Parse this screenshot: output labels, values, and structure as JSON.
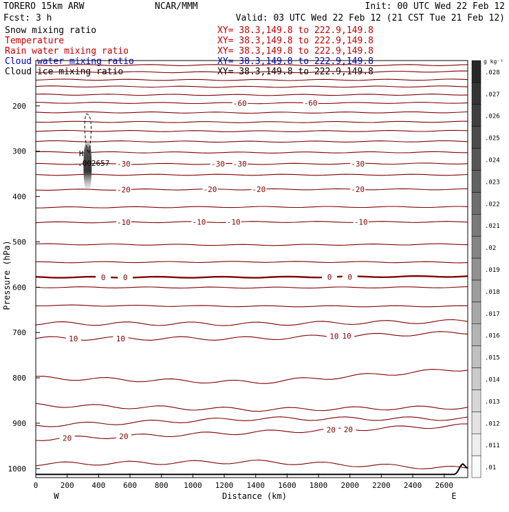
{
  "header": {
    "model": "TORERO  15km ARW",
    "center": "NCAR/MMM",
    "init": "Init: 00 UTC Wed 22 Feb 12",
    "fcst": "Fcst:    3 h",
    "valid": "Valid: 03 UTC Wed 22 Feb 12 (21 CST Tue 21 Feb 12)"
  },
  "fields": [
    {
      "name": "Snow mixing ratio",
      "xy": "XY=  38.3,149.8  to  222.9,149.8",
      "color": "#000000",
      "xy_color": "#c00000"
    },
    {
      "name": "Temperature",
      "xy": "XY=  38.3,149.8  to  222.9,149.8",
      "color": "#c00000",
      "xy_color": "#c00000"
    },
    {
      "name": "Rain water mixing ratio",
      "xy": "XY=  38.3,149.8  to  222.9,149.8",
      "color": "#c00000",
      "xy_color": "#c00000"
    },
    {
      "name": "Cloud water mixing ratio",
      "xy": "XY=  38.3,149.8  to  222.9,149.8",
      "color": "#0000c0",
      "xy_color": "#0000c0"
    },
    {
      "name": "Cloud ice mixing ratio",
      "xy": "XY=  38.3,149.8  to  222.9,149.8",
      "color": "#000000",
      "xy_color": "#000000"
    }
  ],
  "chart_data": {
    "type": "contour cross-section",
    "xlabel": "Distance (km)",
    "ylabel": "Pressure (hPa)",
    "xlim": [
      0,
      2750
    ],
    "ylim": [
      1020,
      100
    ],
    "x_ticks": [
      0,
      200,
      400,
      600,
      800,
      1000,
      1200,
      1400,
      1600,
      1800,
      2000,
      2200,
      2400,
      2600
    ],
    "y_ticks": [
      200,
      300,
      400,
      500,
      600,
      700,
      800,
      900,
      1000
    ],
    "x_end_labels": {
      "left": "W",
      "right": "E"
    },
    "colorbar": {
      "unit": "g kg⁻¹",
      "tick_labels": [
        ".01",
        ".011",
        ".012",
        ".013",
        ".014",
        ".015",
        ".016",
        ".017",
        ".018",
        ".019",
        ".02",
        ".021",
        ".022",
        ".023",
        ".024",
        ".025",
        ".026",
        ".027",
        ".028"
      ],
      "range": [
        0.0095,
        0.0285
      ]
    },
    "temperature_color": "#800000",
    "isotherms": [
      {
        "p": [
          110,
          110,
          110
        ],
        "x": [
          0,
          1400,
          2750
        ]
      },
      {
        "p": [
          125,
          126,
          124
        ],
        "x": [
          0,
          1400,
          2750
        ]
      },
      {
        "p": [
          142,
          143,
          142
        ],
        "x": [
          0,
          1400,
          2750
        ]
      },
      {
        "p": [
          157,
          158,
          157
        ],
        "x": [
          0,
          1400,
          2750
        ]
      },
      {
        "p": [
          175,
          176,
          175
        ],
        "x": [
          0,
          1400,
          2750
        ]
      },
      {
        "p": [
          193,
          194,
          193
        ],
        "x": [
          0,
          1400,
          2750
        ],
        "label": "-60",
        "label_x": [
          1300,
          1750
        ]
      },
      {
        "p": [
          214,
          215,
          214
        ],
        "x": [
          0,
          1400,
          2750
        ]
      },
      {
        "p": [
          235,
          236,
          235
        ],
        "x": [
          0,
          1400,
          2750
        ]
      },
      {
        "p": [
          255,
          256,
          255
        ],
        "x": [
          0,
          1400,
          2750
        ]
      },
      {
        "p": [
          278,
          279,
          278
        ],
        "x": [
          0,
          1400,
          2750
        ]
      },
      {
        "p": [
          302,
          303,
          302
        ],
        "x": [
          0,
          1400,
          2750
        ]
      },
      {
        "p": [
          328,
          328,
          327
        ],
        "x": [
          0,
          1400,
          2750
        ],
        "label": "-30",
        "label_x": [
          560,
          1160,
          1300,
          2050
        ]
      },
      {
        "p": [
          352,
          352,
          352
        ],
        "x": [
          0,
          1400,
          2750
        ]
      },
      {
        "p": [
          385,
          384,
          384
        ],
        "x": [
          0,
          1400,
          2750
        ],
        "label": "-20",
        "label_x": [
          560,
          1110,
          1420,
          2050
        ]
      },
      {
        "p": [
          424,
          423,
          423
        ],
        "x": [
          0,
          1400,
          2750
        ]
      },
      {
        "p": [
          457,
          456,
          456
        ],
        "x": [
          0,
          1400,
          2750
        ],
        "label": "-10",
        "label_x": [
          560,
          1040,
          1260,
          2070
        ]
      },
      {
        "p": [
          505,
          507,
          505
        ],
        "x": [
          0,
          1400,
          2750
        ]
      },
      {
        "p": [
          545,
          544,
          545
        ],
        "x": [
          0,
          1400,
          2750
        ]
      },
      {
        "p": [
          578,
          578,
          576
        ],
        "x": [
          0,
          1400,
          2750
        ],
        "label": "0",
        "label_x": [
          430,
          570,
          1870,
          2000
        ],
        "bold": true
      },
      {
        "p": [
          600,
          601,
          600
        ],
        "x": [
          0,
          1400,
          2750
        ]
      },
      {
        "p": [
          640,
          642,
          642
        ],
        "x": [
          0,
          1400,
          2750
        ]
      },
      {
        "p": [
          680,
          681,
          675
        ],
        "x": [
          0,
          1400,
          2750
        ]
      },
      {
        "p": [
          713,
          713,
          700
        ],
        "x": [
          0,
          1400,
          2750
        ],
        "label": "10",
        "label_x": [
          240,
          540,
          1900,
          1980
        ]
      },
      {
        "p": [
          800,
          810,
          780
        ],
        "x": [
          0,
          1400,
          2750
        ]
      },
      {
        "p": [
          860,
          870,
          865
        ],
        "x": [
          0,
          1400,
          2750
        ]
      },
      {
        "p": [
          905,
          890,
          890
        ],
        "x": [
          0,
          1400,
          2750
        ]
      },
      {
        "p": [
          935,
          920,
          905
        ],
        "x": [
          0,
          1400,
          2750
        ],
        "label": "20",
        "label_x": [
          200,
          560,
          1880,
          1990
        ]
      },
      {
        "p": [
          990,
          985,
          1000
        ],
        "x": [
          0,
          1400,
          2750
        ]
      }
    ],
    "ice_max": {
      "label": "H",
      "value": ".002657",
      "x": 290,
      "p": 320
    }
  }
}
